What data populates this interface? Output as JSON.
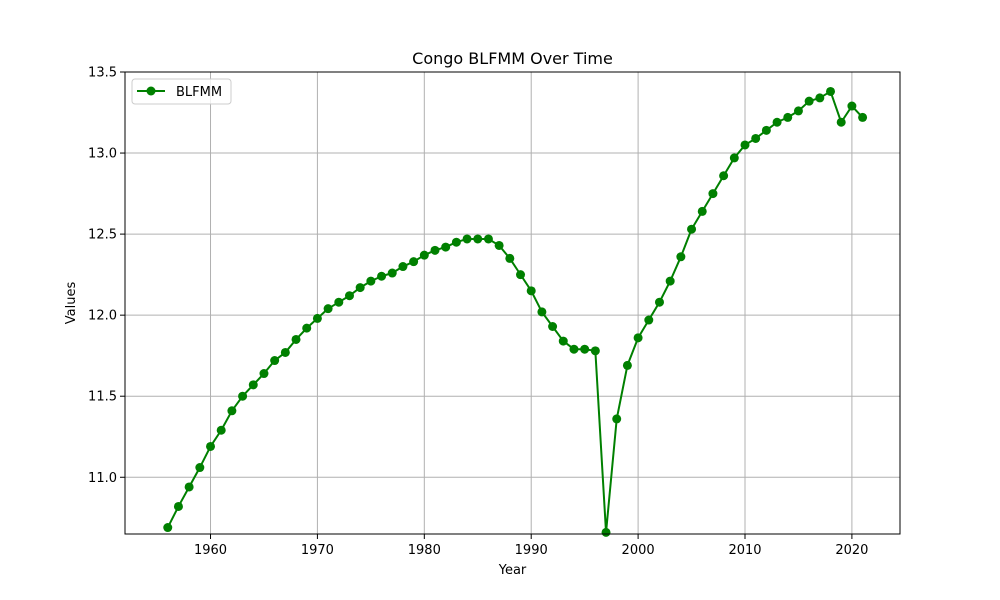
{
  "chart_data": {
    "type": "line",
    "title": "Congo BLFMM Over Time",
    "xlabel": "Year",
    "ylabel": "Values",
    "xlim": [
      1952,
      2024.5
    ],
    "ylim": [
      10.65,
      13.5
    ],
    "xticks": [
      1960,
      1970,
      1980,
      1990,
      2000,
      2010,
      2020
    ],
    "yticks": [
      11.0,
      11.5,
      12.0,
      12.5,
      13.0,
      13.5
    ],
    "ytick_labels": [
      "11.0",
      "11.5",
      "12.0",
      "12.5",
      "13.0",
      "13.5"
    ],
    "grid": true,
    "legend": "top-left",
    "color": "#008000",
    "series": [
      {
        "name": "BLFMM",
        "x": [
          1956,
          1957,
          1958,
          1959,
          1960,
          1961,
          1962,
          1963,
          1964,
          1965,
          1966,
          1967,
          1968,
          1969,
          1970,
          1971,
          1972,
          1973,
          1974,
          1975,
          1976,
          1977,
          1978,
          1979,
          1980,
          1981,
          1982,
          1983,
          1984,
          1985,
          1986,
          1987,
          1988,
          1989,
          1990,
          1991,
          1992,
          1993,
          1994,
          1995,
          1996,
          1997,
          1998,
          1999,
          2000,
          2001,
          2002,
          2003,
          2004,
          2005,
          2006,
          2007,
          2008,
          2009,
          2010,
          2011,
          2012,
          2013,
          2014,
          2015,
          2016,
          2017,
          2018,
          2019,
          2020,
          2021
        ],
        "values": [
          10.69,
          10.82,
          10.94,
          11.06,
          11.19,
          11.29,
          11.41,
          11.5,
          11.57,
          11.64,
          11.72,
          11.77,
          11.85,
          11.92,
          11.98,
          12.04,
          12.08,
          12.12,
          12.17,
          12.21,
          12.24,
          12.26,
          12.3,
          12.33,
          12.37,
          12.4,
          12.42,
          12.45,
          12.47,
          12.47,
          12.47,
          12.43,
          12.35,
          12.25,
          12.15,
          12.02,
          11.93,
          11.84,
          11.79,
          11.79,
          11.78,
          10.66,
          11.36,
          11.69,
          11.86,
          11.97,
          12.08,
          12.21,
          12.36,
          12.53,
          12.64,
          12.75,
          12.86,
          12.97,
          13.05,
          13.09,
          13.14,
          13.19,
          13.22,
          13.26,
          13.32,
          13.34,
          13.38,
          13.19,
          13.29,
          13.22
        ]
      }
    ]
  }
}
